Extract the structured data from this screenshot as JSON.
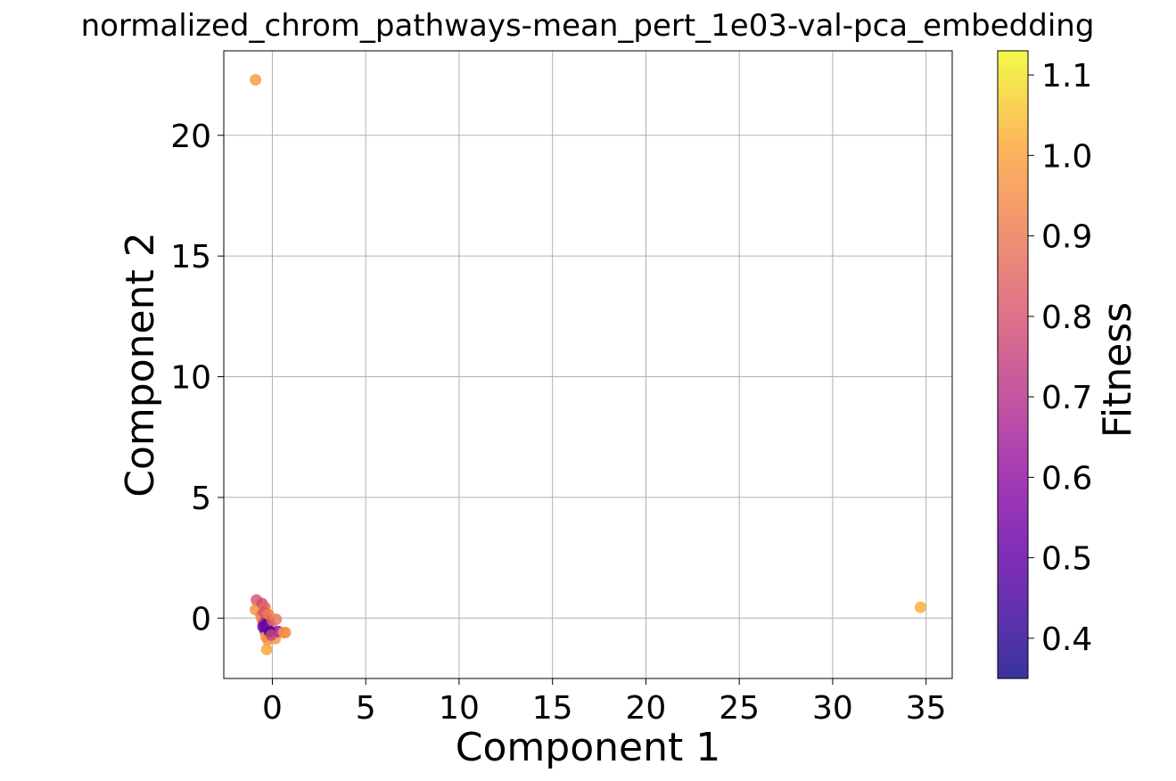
{
  "chart_data": {
    "type": "scatter",
    "title": "normalized_chrom_pathways-mean_pert_1e03-val-pca_embedding",
    "xlabel": "Component 1",
    "ylabel": "Component 2",
    "xlim": [
      -2.6,
      36.4
    ],
    "ylim": [
      -2.5,
      23.5
    ],
    "xticks": [
      0,
      5,
      10,
      15,
      20,
      25,
      30,
      35
    ],
    "xtick_labels": [
      "0",
      "5",
      "10",
      "15",
      "20",
      "25",
      "30",
      "35"
    ],
    "yticks": [
      0,
      5,
      10,
      15,
      20
    ],
    "ytick_labels": [
      "0",
      "5",
      "10",
      "15",
      "20"
    ],
    "grid": true,
    "colorbar": {
      "label": "Fitness",
      "colormap": "plasma",
      "range": [
        0.35,
        1.13
      ],
      "ticks": [
        0.4,
        0.5,
        0.6,
        0.7,
        0.8,
        0.9,
        1.0,
        1.1
      ],
      "tick_labels": [
        "0.4",
        "0.5",
        "0.6",
        "0.7",
        "0.8",
        "0.9",
        "1.0",
        "1.1"
      ]
    },
    "points": [
      {
        "x": -0.9,
        "y": 22.3,
        "fitness": 0.98
      },
      {
        "x": 34.7,
        "y": 0.45,
        "fitness": 1.02
      },
      {
        "x": -0.85,
        "y": 0.75,
        "fitness": 0.8
      },
      {
        "x": -0.9,
        "y": 0.35,
        "fitness": 0.95
      },
      {
        "x": -0.55,
        "y": 0.6,
        "fitness": 0.78
      },
      {
        "x": -0.5,
        "y": 0.3,
        "fitness": 1.0
      },
      {
        "x": -0.6,
        "y": 0.1,
        "fitness": 0.9
      },
      {
        "x": -0.4,
        "y": 0.45,
        "fitness": 0.85
      },
      {
        "x": -0.3,
        "y": 0.2,
        "fitness": 1.03
      },
      {
        "x": -0.55,
        "y": -0.05,
        "fitness": 0.95
      },
      {
        "x": -0.45,
        "y": -0.2,
        "fitness": 0.75
      },
      {
        "x": -0.35,
        "y": -0.3,
        "fitness": 0.55
      },
      {
        "x": -0.4,
        "y": -0.5,
        "fitness": 0.6
      },
      {
        "x": -0.3,
        "y": 0.0,
        "fitness": 0.7
      },
      {
        "x": -0.2,
        "y": -0.15,
        "fitness": 0.45
      },
      {
        "x": -0.25,
        "y": -0.4,
        "fitness": 0.65
      },
      {
        "x": -0.1,
        "y": -0.3,
        "fitness": 0.85
      },
      {
        "x": -0.35,
        "y": -0.75,
        "fitness": 0.98
      },
      {
        "x": -0.25,
        "y": -0.9,
        "fitness": 0.95
      },
      {
        "x": -0.3,
        "y": -1.3,
        "fitness": 1.0
      },
      {
        "x": 0.2,
        "y": -0.05,
        "fitness": 0.88
      },
      {
        "x": 0.15,
        "y": -0.85,
        "fitness": 0.97
      },
      {
        "x": 0.3,
        "y": -0.55,
        "fitness": 0.6
      },
      {
        "x": 0.6,
        "y": -0.6,
        "fitness": 0.98
      },
      {
        "x": 0.7,
        "y": -0.6,
        "fitness": 0.95
      },
      {
        "x": -0.15,
        "y": -0.55,
        "fitness": 0.4
      },
      {
        "x": -0.05,
        "y": -0.7,
        "fitness": 0.75
      },
      {
        "x": -0.45,
        "y": 0.25,
        "fitness": 0.8
      },
      {
        "x": -0.2,
        "y": 0.15,
        "fitness": 0.92
      },
      {
        "x": -0.5,
        "y": -0.35,
        "fitness": 0.5
      }
    ]
  }
}
